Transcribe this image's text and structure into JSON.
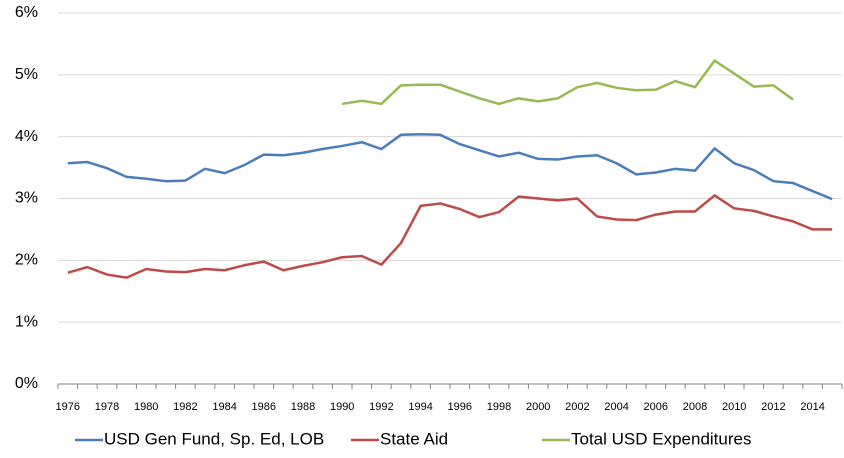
{
  "chart_data": {
    "type": "line",
    "categories": [
      "1976",
      null,
      "1978",
      null,
      "1980",
      null,
      "1982",
      null,
      "1984",
      null,
      "1986",
      null,
      "1988",
      null,
      "1990",
      null,
      "1992",
      null,
      "1994",
      null,
      "1996",
      null,
      "1998",
      null,
      "2000",
      null,
      "2002",
      null,
      "2004",
      null,
      "2006",
      null,
      "2008",
      null,
      "2010",
      null,
      "2012",
      null,
      "2014",
      null
    ],
    "series": [
      {
        "name": "USD Gen Fund, Sp. Ed, LOB",
        "color": "#4a7ebb",
        "values": [
          3.57,
          3.59,
          3.49,
          3.35,
          3.32,
          3.28,
          3.29,
          3.48,
          3.41,
          3.54,
          3.71,
          3.7,
          3.74,
          3.8,
          3.85,
          3.91,
          3.8,
          4.03,
          4.04,
          4.03,
          3.88,
          3.78,
          3.68,
          3.74,
          3.64,
          3.63,
          3.68,
          3.7,
          3.57,
          3.39,
          3.42,
          3.48,
          3.45,
          3.81,
          3.57,
          3.46,
          3.28,
          3.25,
          3.12,
          2.99
        ]
      },
      {
        "name": "State Aid",
        "color": "#be4b48",
        "values": [
          1.8,
          1.89,
          1.77,
          1.72,
          1.86,
          1.82,
          1.81,
          1.86,
          1.84,
          1.92,
          1.98,
          1.84,
          1.91,
          1.97,
          2.05,
          2.07,
          1.93,
          2.28,
          2.88,
          2.92,
          2.83,
          2.7,
          2.78,
          3.03,
          3.0,
          2.97,
          3.0,
          2.71,
          2.66,
          2.65,
          2.74,
          2.79,
          2.79,
          3.05,
          2.84,
          2.8,
          2.71,
          2.63,
          2.5,
          2.5
        ]
      },
      {
        "name": "Total USD Expenditures",
        "color": "#98b954",
        "values": [
          null,
          null,
          null,
          null,
          null,
          null,
          null,
          null,
          null,
          null,
          null,
          null,
          null,
          null,
          4.53,
          4.58,
          4.53,
          4.83,
          4.84,
          4.84,
          4.73,
          4.62,
          4.53,
          4.62,
          4.57,
          4.62,
          4.8,
          4.87,
          4.79,
          4.75,
          4.76,
          4.9,
          4.8,
          5.23,
          5.02,
          4.81,
          4.83,
          4.6,
          null,
          null
        ]
      }
    ],
    "ylim": [
      0,
      6
    ],
    "yticks": [
      {
        "value": 0,
        "label": "0%"
      },
      {
        "value": 1,
        "label": "1%"
      },
      {
        "value": 2,
        "label": "2%"
      },
      {
        "value": 3,
        "label": "3%"
      },
      {
        "value": 4,
        "label": "4%"
      },
      {
        "value": 5,
        "label": "5%"
      },
      {
        "value": 6,
        "label": "6%"
      }
    ],
    "grid": true,
    "legend": "bottom"
  }
}
